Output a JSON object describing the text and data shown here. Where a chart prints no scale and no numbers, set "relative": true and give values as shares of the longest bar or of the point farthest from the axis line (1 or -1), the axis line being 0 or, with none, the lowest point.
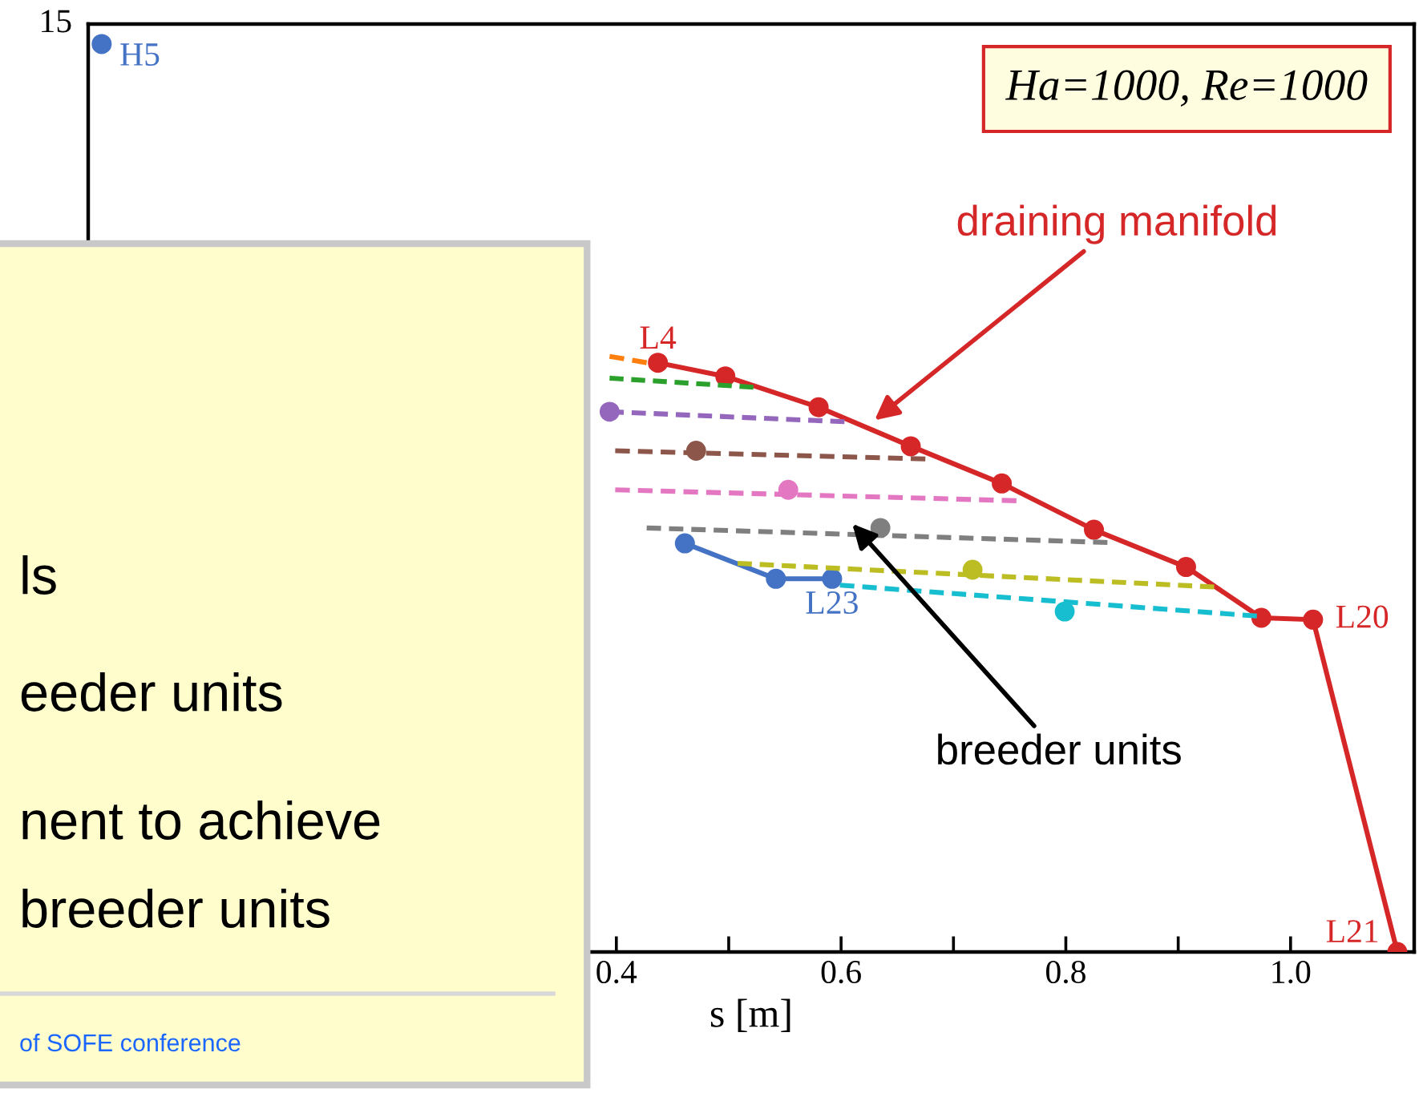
{
  "chart_data": {
    "type": "line",
    "xlabel": "s [m]",
    "xlim": [
      -0.07,
      1.11
    ],
    "relative": true,
    "xticks": [
      {
        "value": 0.4,
        "label": "0.4"
      },
      {
        "value": 0.5,
        "label": null
      },
      {
        "value": 0.6,
        "label": "0.6"
      },
      {
        "value": 0.7,
        "label": null
      },
      {
        "value": 0.8,
        "label": "0.8"
      },
      {
        "value": 0.9,
        "label": null
      },
      {
        "value": 1.0,
        "label": "1.0"
      }
    ],
    "grid": false,
    "legend": false,
    "series": [
      {
        "color": "#d62728",
        "marker": "circle",
        "line_style": "solid",
        "x": [
          0.437,
          0.497,
          0.58,
          0.662,
          0.743,
          0.825,
          0.907,
          0.974,
          1.02,
          1.095
        ],
        "values": [
          0.649,
          0.634,
          0.6,
          0.557,
          0.516,
          0.465,
          0.424,
          0.368,
          0.366,
          0
        ]
      },
      {
        "color": "#4472c4",
        "marker": "circle",
        "line_style": "solid",
        "x": [
          -0.058,
          0.2,
          0.461,
          0.542,
          0.592
        ],
        "values": [
          1,
          null,
          0.45,
          0.411,
          0.411
        ]
      },
      {
        "color": "#ff7f0e",
        "marker": "none",
        "line_style": "dashed",
        "x": [
          0.394,
          0.427
        ],
        "values": [
          0.656,
          0.649
        ]
      },
      {
        "color": "#2ca02c",
        "marker": "none",
        "line_style": "dashed",
        "x": [
          0.394,
          0.522
        ],
        "values": [
          0.632,
          0.622
        ]
      },
      {
        "color": "#9467bd",
        "marker": "none",
        "line_style": "dashed",
        "x": [
          0.394,
          0.603
        ],
        "values": [
          0.595,
          0.584
        ]
      },
      {
        "color": "#8c564b",
        "marker": "none",
        "line_style": "dashed",
        "x": [
          0.399,
          0.675
        ],
        "values": [
          0.552,
          0.543
        ]
      },
      {
        "color": "#e377c2",
        "marker": "none",
        "line_style": "dashed",
        "x": [
          0.399,
          0.756
        ],
        "values": [
          0.509,
          0.497
        ]
      },
      {
        "color": "#7f7f7f",
        "marker": "none",
        "line_style": "dashed",
        "x": [
          0.427,
          0.837
        ],
        "values": [
          0.467,
          0.451
        ]
      },
      {
        "color": "#bcbd22",
        "marker": "none",
        "line_style": "dashed",
        "x": [
          0.508,
          0.932
        ],
        "values": [
          0.428,
          0.402
        ]
      },
      {
        "color": "#17becf",
        "marker": "none",
        "line_style": "dashed",
        "x": [
          0.599,
          0.97
        ],
        "values": [
          0.404,
          0.37
        ]
      },
      {
        "type": "scatter",
        "colors": [
          "#9467bd",
          "#8c564b",
          "#e377c2",
          "#7f7f7f",
          "#bcbd22",
          "#17becf"
        ],
        "x": [
          0.394,
          0.471,
          0.553,
          0.635,
          0.717,
          0.799
        ],
        "values": [
          0.595,
          0.552,
          0.509,
          0.467,
          0.421,
          0.375
        ]
      }
    ],
    "annotations": [
      {
        "text": "H5",
        "x": -0.058,
        "y": 1
      },
      {
        "text": "L4",
        "x": 0.437,
        "y": 0.649
      },
      {
        "text": "L20",
        "x": 1.02,
        "y": 0.366
      },
      {
        "text": "L21",
        "x": 1.095,
        "y": 0
      },
      {
        "text": "L23",
        "x": 0.592,
        "y": 0.411
      },
      "15",
      "Ha=1000, Re=1000",
      "draining manifold",
      "breeder units",
      "ls",
      "eeder units",
      "nent to achieve",
      "breeder units",
      "of SOFE conference"
    ]
  }
}
